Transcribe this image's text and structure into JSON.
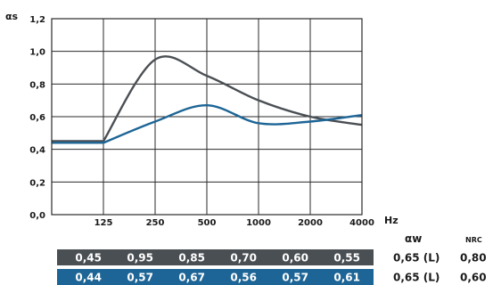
{
  "chart_data": {
    "type": "line",
    "ylabel": "αs",
    "xlabel": "Hz",
    "ylim": [
      0,
      1.2
    ],
    "y_ticks": [
      "0,0",
      "0,2",
      "0,4",
      "0,6",
      "0,8",
      "1,0",
      "1,2"
    ],
    "x_ticks": [
      "125",
      "250",
      "500",
      "1000",
      "2000",
      "4000"
    ],
    "grid": true,
    "series": [
      {
        "color": "#4a4f54",
        "values": [
          0.45,
          0.95,
          0.85,
          0.7,
          0.6,
          0.55
        ]
      },
      {
        "color": "#1d6596",
        "values": [
          0.44,
          0.57,
          0.67,
          0.56,
          0.57,
          0.61
        ]
      }
    ]
  },
  "table": {
    "header_aw": "αw",
    "header_nrc": "NRC",
    "rows": [
      {
        "color": "#4a4f54",
        "values": [
          "0,45",
          "0,95",
          "0,85",
          "0,70",
          "0,60",
          "0,55"
        ],
        "aw": "0,65 (L)",
        "nrc": "0,80"
      },
      {
        "color": "#1d6596",
        "values": [
          "0,44",
          "0,57",
          "0,67",
          "0,56",
          "0,57",
          "0,61"
        ],
        "aw": "0,65 (L)",
        "nrc": "0,60"
      }
    ]
  }
}
